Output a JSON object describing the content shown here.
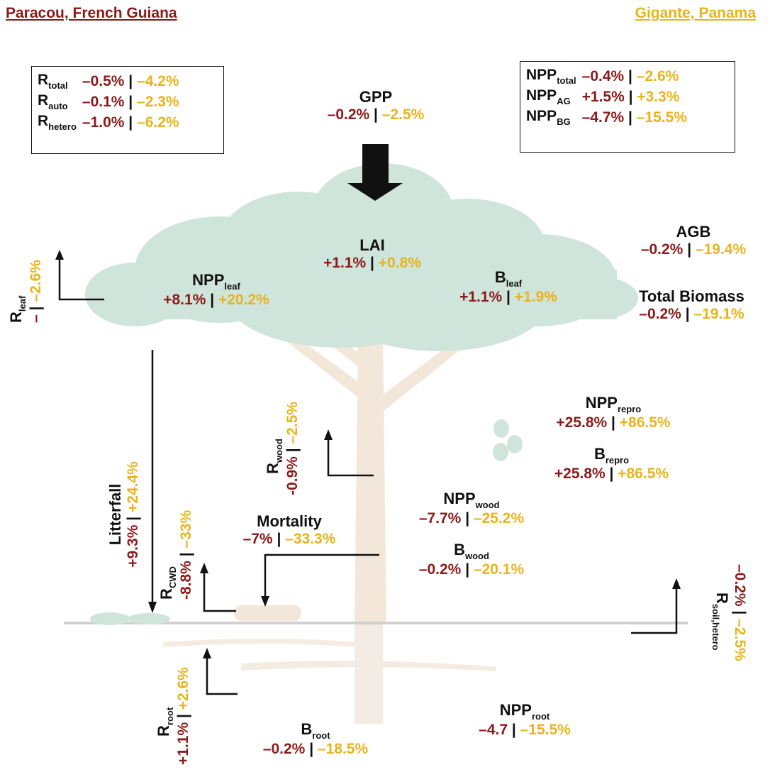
{
  "sites": {
    "left": "Paracou, French Guiana",
    "right": "Gigante, Panama"
  },
  "colors": {
    "site1": "#8b1a1a",
    "site2": "#e8b41c",
    "canopy": "#cfe4da",
    "trunk": "#f2e6d8"
  },
  "resp_box": {
    "rows": [
      {
        "label": "R",
        "sub": "total",
        "v1": "–0.5%",
        "v2": "–4.2%"
      },
      {
        "label": "R",
        "sub": "auto",
        "v1": "–0.1%",
        "v2": "–2.3%"
      },
      {
        "label": "R",
        "sub": "hetero",
        "v1": "–1.0%",
        "v2": "–6.2%"
      }
    ]
  },
  "npp_box": {
    "rows": [
      {
        "label": "NPP",
        "sub": "total",
        "v1": "–0.4%",
        "v2": "–2.6%"
      },
      {
        "label": "NPP",
        "sub": "AG",
        "v1": "+1.5%",
        "v2": "+3.3%"
      },
      {
        "label": "NPP",
        "sub": "BG",
        "v1": "–4.7%",
        "v2": "–15.5%"
      }
    ]
  },
  "gpp": {
    "label": "GPP",
    "v1": "–0.2%",
    "v2": "–2.5%"
  },
  "lai": {
    "label": "LAI",
    "v1": "+1.1%",
    "v2": "+0.8%"
  },
  "npp_leaf": {
    "label": "NPP",
    "sub": "leaf",
    "v1": "+8.1%",
    "v2": "+20.2%"
  },
  "b_leaf": {
    "label": "B",
    "sub": "leaf",
    "v1": "+1.1%",
    "v2": "+1.9%"
  },
  "agb": {
    "label": "AGB",
    "v1": "–0.2%",
    "v2": "–19.4%"
  },
  "total_biomass": {
    "label": "Total Biomass",
    "v1": "–0.2%",
    "v2": "–19.1%"
  },
  "r_leaf": {
    "label": "R",
    "sub": "leaf",
    "v1": "–",
    "v2": "–2.6%"
  },
  "r_wood": {
    "label": "R",
    "sub": "wood",
    "v1": "-0.9%",
    "v2": "–2.5%"
  },
  "npp_repro": {
    "label": "NPP",
    "sub": "repro",
    "v1": "+25.8%",
    "v2": "+86.5%"
  },
  "b_repro": {
    "label": "B",
    "sub": "repro",
    "v1": "+25.8%",
    "v2": "+86.5%"
  },
  "litterfall": {
    "label": "Litterfall",
    "v1": "+9.3%",
    "v2": "+24.4%"
  },
  "r_cwd": {
    "label": "R",
    "sub": "CWD",
    "v1": "-8.8%",
    "v2": "–33%"
  },
  "mortality": {
    "label": "Mortality",
    "v1": "–7%",
    "v2": "–33.3%"
  },
  "npp_wood": {
    "label": "NPP",
    "sub": "wood",
    "v1": "–7.7%",
    "v2": "–25.2%"
  },
  "b_wood": {
    "label": "B",
    "sub": "wood",
    "v1": "–0.2%",
    "v2": "–20.1%"
  },
  "r_soil": {
    "label": "R",
    "sub": "soil,hetero",
    "v1": "–0.2%",
    "v2": "–2.5%"
  },
  "r_root": {
    "label": "R",
    "sub": "root",
    "v1": "+1.1%",
    "v2": "+2.6%"
  },
  "b_root": {
    "label": "B",
    "sub": "root",
    "v1": "–0.2%",
    "v2": "–18.5%"
  },
  "npp_root": {
    "label": "NPP",
    "sub": "root",
    "v1": "–4.7",
    "v2": "–15.5%"
  },
  "separator": "|"
}
